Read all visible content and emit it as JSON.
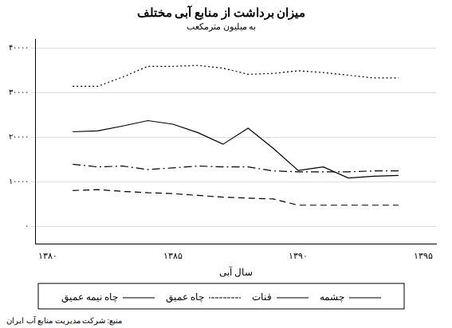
{
  "chart_data": {
    "type": "line",
    "title": "میزان برداشت از منابع آبی مختلف",
    "subtitle": "به میلیون مترمکعب",
    "x_label": "سال آبی",
    "annotations": [
      "منبع: شرکت مدیریت منابع آب ایران"
    ],
    "x": [
      1381,
      1382,
      1383,
      1384,
      1385,
      1386,
      1387,
      1388,
      1389,
      1390,
      1391,
      1392,
      1393,
      1394
    ],
    "series": [
      {
        "name": "چشمه",
        "color": "#000000",
        "line_style": "solid",
        "values": [
          21200,
          21400,
          22500,
          23700,
          22900,
          21000,
          18400,
          22000,
          17500,
          12500,
          13300,
          10800,
          11200,
          11400
        ]
      },
      {
        "name": "قنات",
        "color": "#000000",
        "line_style": "dashed",
        "values": [
          8000,
          8200,
          7800,
          7500,
          7300,
          6900,
          6500,
          6300,
          6100,
          4700,
          4700,
          4700,
          4700,
          4700
        ]
      },
      {
        "name": "چاه عمیق",
        "color": "#000000",
        "line_style": "dotted",
        "values": [
          31400,
          31400,
          33500,
          35900,
          35900,
          36100,
          35500,
          34100,
          34300,
          34900,
          34500,
          33900,
          33300,
          33300
        ]
      },
      {
        "name": "چاه نیمه عمیق",
        "color": "#000000",
        "line_style": "dashdot",
        "values": [
          13900,
          13300,
          13500,
          12700,
          13100,
          13500,
          13300,
          13300,
          12400,
          12200,
          12200,
          12200,
          12400,
          12400
        ]
      }
    ],
    "xlim": [
      1379.5,
      1395.5
    ],
    "xticks": [
      {
        "value": 1380,
        "label": "۱۳۸۰"
      },
      {
        "value": 1385,
        "label": "۱۳۸۵"
      },
      {
        "value": 1390,
        "label": "۱۳۹۰"
      },
      {
        "value": 1395,
        "label": "۱۳۹۵"
      }
    ],
    "ylim": [
      -4000,
      42000
    ],
    "yticks": [
      {
        "value": 0,
        "label": "۰"
      },
      {
        "value": 10000,
        "label": "۱۰۰۰۰"
      },
      {
        "value": 20000,
        "label": "۲۰۰۰۰"
      },
      {
        "value": 30000,
        "label": "۳۰۰۰۰"
      },
      {
        "value": 40000,
        "label": "۴۰۰۰۰"
      }
    ],
    "grid": true,
    "legend": "bottom",
    "marker": "none"
  }
}
